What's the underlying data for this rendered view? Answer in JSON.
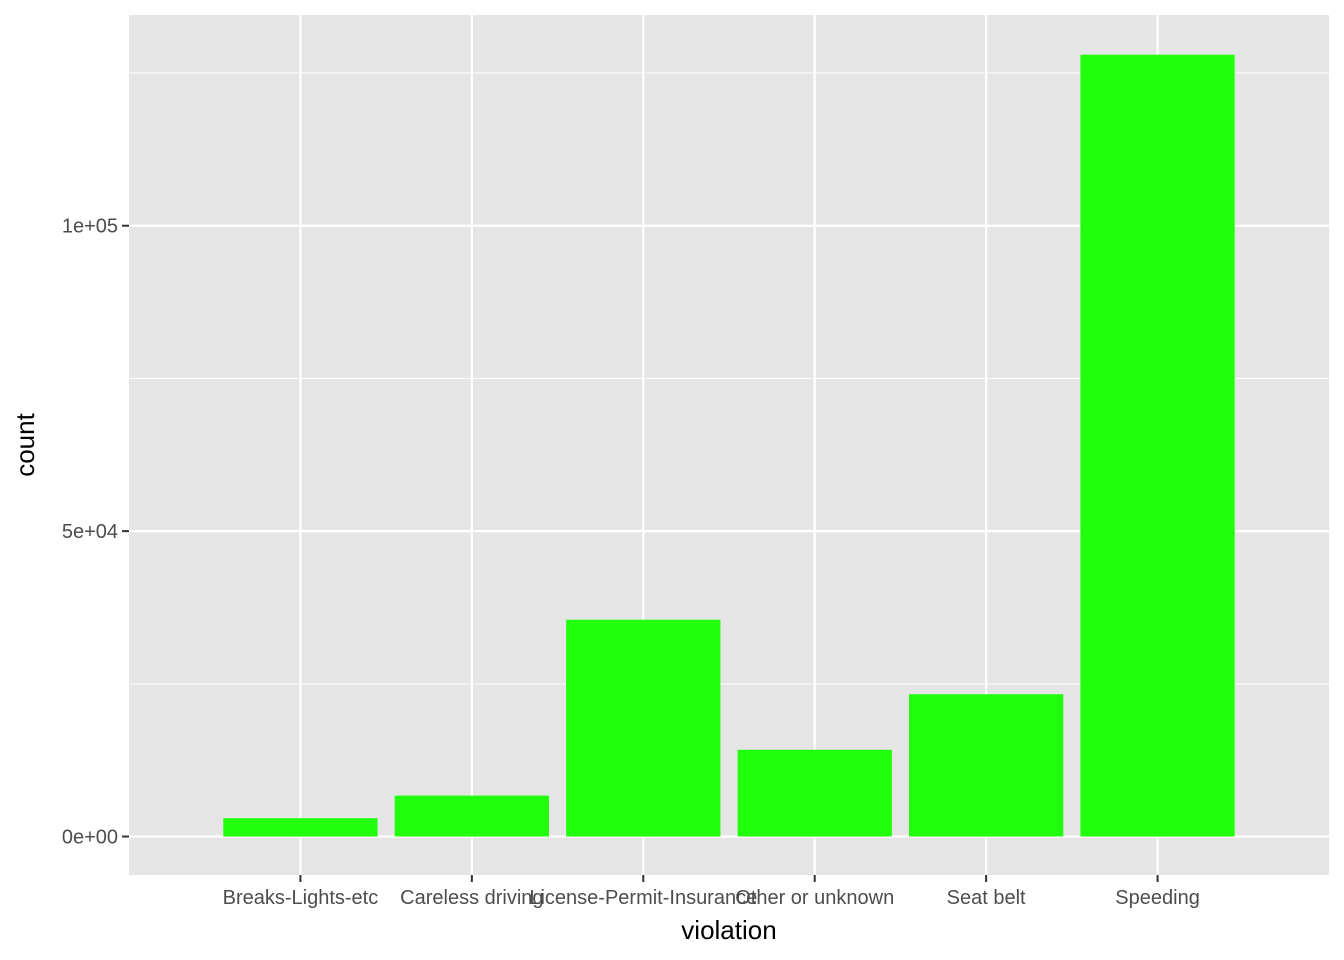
{
  "chart_data": {
    "type": "bar",
    "title": "",
    "xlabel": "violation",
    "ylabel": "count",
    "categories": [
      "Breaks-Lights-etc",
      "Careless driving",
      "License-Permit-Insurance",
      "Other or unknown",
      "Seat belt",
      "Speeding"
    ],
    "values": [
      3000,
      6700,
      35500,
      14200,
      23300,
      128000
    ],
    "ylim": [
      -6300,
      134500
    ],
    "y_ticks": [
      0,
      50000,
      100000
    ],
    "y_tick_labels": [
      "0e+00",
      "5e+04",
      "1e+05"
    ],
    "grid": true,
    "legend": "none",
    "colors": {
      "bar": "#22ff0c",
      "panel": "#e5e5e5",
      "grid": "#ffffff",
      "tick_text": "#4d4d4d",
      "tick_mark": "#333333"
    }
  }
}
